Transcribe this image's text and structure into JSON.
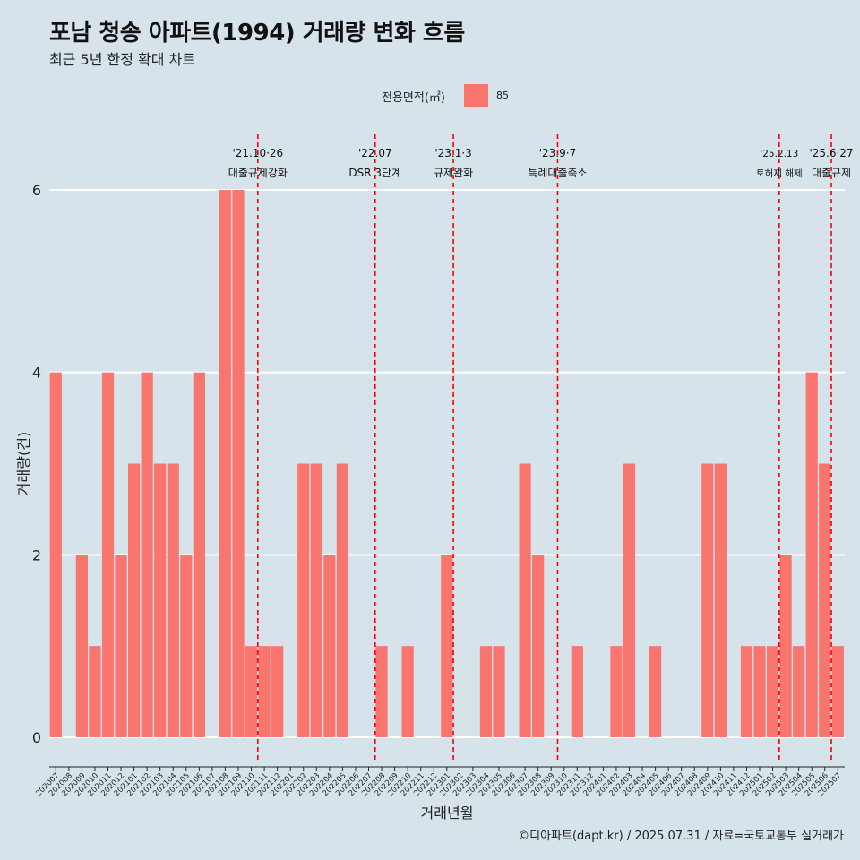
{
  "title": "포남 청송 아파트(1994) 거래량 변화 흐름",
  "subtitle": "최근 5년 한정 확대 차트",
  "legend": {
    "title": "전용면적(㎡)",
    "items": [
      {
        "label": "85",
        "color": "#f8766d"
      }
    ]
  },
  "caption": "©디아파트(dapt.kr) / 2025.07.31 / 자료=국토교통부 실거래가",
  "colors": {
    "background": "#d6e3ea",
    "bar": "#f8766d",
    "event_line": "#ff0000",
    "grid": "#ffffff"
  },
  "chart_data": {
    "type": "bar",
    "xlabel": "거래년월",
    "ylabel": "거래량(건)",
    "ylim": [
      0,
      6
    ],
    "yticks": [
      0,
      2,
      4,
      6
    ],
    "grid": true,
    "legend_position": "top",
    "categories": [
      "202007",
      "202008",
      "202009",
      "202010",
      "202011",
      "202012",
      "202101",
      "202102",
      "202103",
      "202104",
      "202105",
      "202106",
      "202107",
      "202108",
      "202109",
      "202110",
      "202111",
      "202112",
      "202201",
      "202202",
      "202203",
      "202204",
      "202205",
      "202206",
      "202207",
      "202208",
      "202209",
      "202210",
      "202211",
      "202212",
      "202301",
      "202302",
      "202303",
      "202304",
      "202305",
      "202306",
      "202307",
      "202308",
      "202309",
      "202310",
      "202311",
      "202312",
      "202401",
      "202402",
      "202403",
      "202404",
      "202405",
      "202406",
      "202407",
      "202408",
      "202409",
      "202410",
      "202411",
      "202412",
      "202501",
      "202502",
      "202503",
      "202504",
      "202505",
      "202506",
      "202507"
    ],
    "series": [
      {
        "name": "85",
        "values": [
          4,
          0,
          2,
          1,
          4,
          2,
          3,
          4,
          3,
          3,
          2,
          4,
          0,
          6,
          6,
          1,
          1,
          1,
          0,
          3,
          3,
          2,
          3,
          0,
          0,
          1,
          0,
          1,
          0,
          0,
          2,
          0,
          0,
          1,
          1,
          0,
          3,
          2,
          0,
          0,
          1,
          0,
          0,
          1,
          3,
          0,
          1,
          0,
          0,
          0,
          3,
          3,
          0,
          1,
          1,
          1,
          2,
          1,
          4,
          3,
          1
        ]
      }
    ],
    "annotations": [
      {
        "date_line1": "'21.10·26",
        "date_line2": "대출규제강화",
        "x": "202110"
      },
      {
        "date_line1": "'22.07",
        "date_line2": "DSR 3단계",
        "x": "202207"
      },
      {
        "date_line1": "'23.1·3",
        "date_line2": "규제완화",
        "x": "202301"
      },
      {
        "date_line1": "'23.9·7",
        "date_line2": "특례대출축소",
        "x": "202309"
      },
      {
        "date_line1": "'25.2.13",
        "date_line2": "토허제 해제",
        "x": "202502"
      },
      {
        "date_line1": "'25.6·27",
        "date_line2": "대출규제",
        "x": "202506"
      }
    ]
  }
}
